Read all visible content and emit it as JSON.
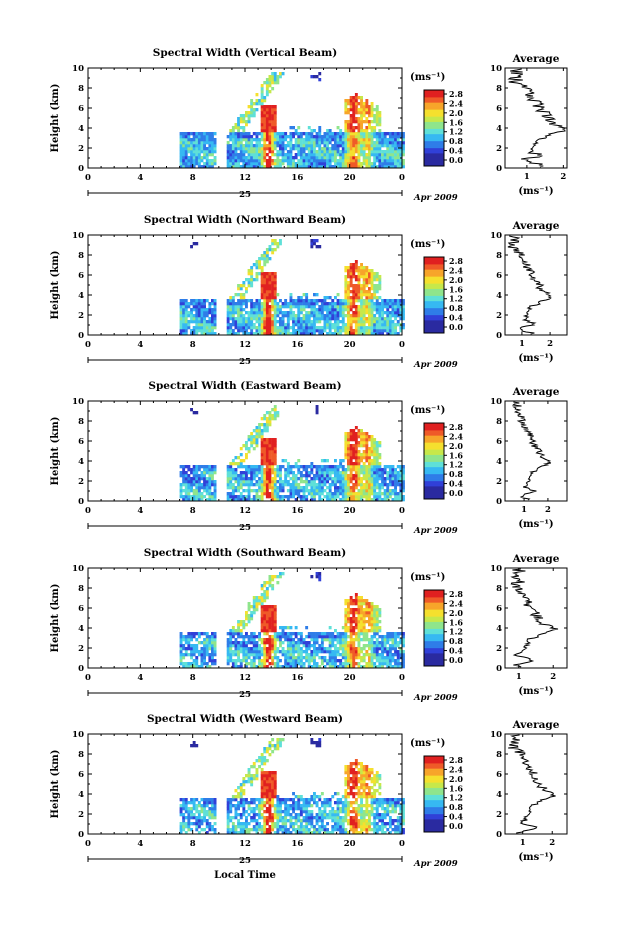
{
  "figure": {
    "colorbar_unit": "(ms⁻¹)",
    "colorbar_ticks": [
      "0.0",
      "0.4",
      "0.8",
      "1.2",
      "1.6",
      "2.0",
      "2.4",
      "2.8"
    ],
    "colorbar_range": [
      0,
      2.8
    ],
    "colors": [
      "#2a2aa0",
      "#3140d8",
      "#2f7de8",
      "#36b9f2",
      "#5fe0d8",
      "#8fe58c",
      "#c7e84a",
      "#f5e02e",
      "#f7a52a",
      "#ef5a28",
      "#e02020"
    ],
    "x_ticks": [
      "0",
      "4",
      "8",
      "12",
      "16",
      "20",
      "0"
    ],
    "x_range_hours": [
      0,
      24
    ],
    "date_day": "25",
    "date_month": "Apr 2009",
    "x_axis_label": "Local Time",
    "y_axis_label": "Height (km)",
    "y_ticks": [
      "0",
      "2",
      "4",
      "6",
      "8",
      "10"
    ],
    "y_range_km": [
      0,
      10
    ],
    "avg_title": "Average",
    "avg_unit": "(ms⁻¹)"
  },
  "chart_data": [
    {
      "type": "heatmap",
      "title": "Spectral Width (Vertical Beam)",
      "avg_xticks": [
        "1",
        "2"
      ],
      "avg_xrange": [
        0.4,
        2.1
      ]
    },
    {
      "type": "heatmap",
      "title": "Spectral Width (Northward Beam)",
      "avg_xticks": [
        "1",
        "2"
      ],
      "avg_xrange": [
        0.4,
        2.6
      ]
    },
    {
      "type": "heatmap",
      "title": "Spectral Width (Eastward Beam)",
      "avg_xticks": [
        "1",
        "2"
      ],
      "avg_xrange": [
        0.2,
        2.8
      ]
    },
    {
      "type": "heatmap",
      "title": "Spectral Width (Southward Beam)",
      "avg_xticks": [
        "1",
        "2"
      ],
      "avg_xrange": [
        0.6,
        2.4
      ]
    },
    {
      "type": "heatmap",
      "title": "Spectral Width (Westward Beam)",
      "avg_xticks": [
        "1",
        "2"
      ],
      "avg_xrange": [
        0.4,
        2.5
      ]
    }
  ]
}
